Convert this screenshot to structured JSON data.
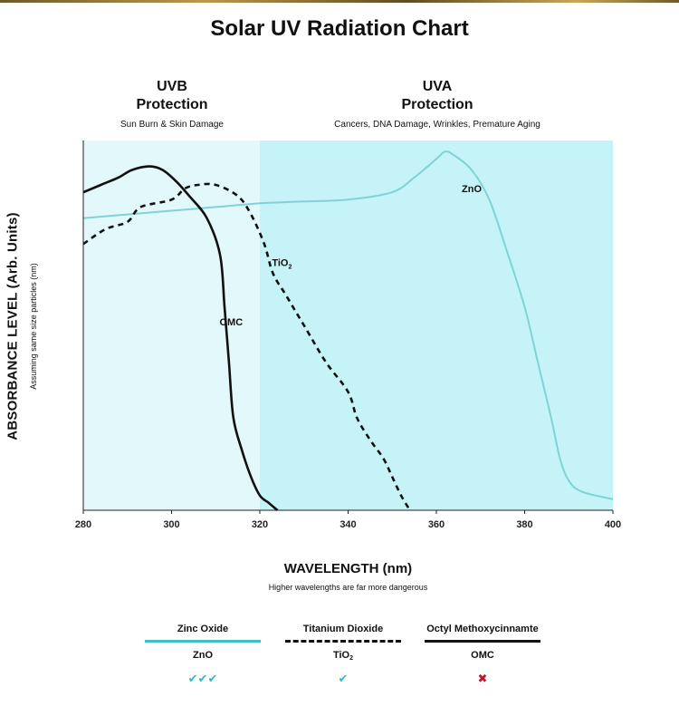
{
  "title": "Solar UV Radiation Chart",
  "regions": {
    "uvb": {
      "line1": "UVB",
      "line2": "Protection",
      "subtitle": "Sun Burn & Skin Damage",
      "color": "#e3f8fb",
      "range": [
        280,
        320
      ]
    },
    "uva": {
      "line1": "UVA",
      "line2": "Protection",
      "subtitle": "Cancers, DNA Damage, Wrinkles, Premature Aging",
      "color": "#c6f3f7",
      "range": [
        320,
        400
      ]
    }
  },
  "axes": {
    "ylabel": "ABSORBANCE LEVEL (Arb. Units)",
    "ylabel_sub": "Assuming same size particles (nm)",
    "xlabel": "WAVELENGTH (nm)",
    "xlabel_sub": "Higher wavelengths are far more dangerous",
    "xticks": [
      "280",
      "300",
      "320",
      "340",
      "360",
      "380",
      "400"
    ]
  },
  "chart_data": {
    "type": "line",
    "title": "Solar UV Radiation Chart",
    "xlabel": "WAVELENGTH (nm)",
    "ylabel": "ABSORBANCE LEVEL (Arb. Units)",
    "xlim": [
      280,
      400
    ],
    "ylim": [
      0,
      1
    ],
    "grid": false,
    "series": [
      {
        "name": "ZnO",
        "label": "ZnO",
        "color": "#7fd3d6",
        "style": "solid",
        "points": [
          [
            280,
            0.79
          ],
          [
            290,
            0.8
          ],
          [
            300,
            0.81
          ],
          [
            310,
            0.82
          ],
          [
            320,
            0.83
          ],
          [
            330,
            0.835
          ],
          [
            340,
            0.84
          ],
          [
            350,
            0.86
          ],
          [
            355,
            0.9
          ],
          [
            360,
            0.95
          ],
          [
            362,
            0.97
          ],
          [
            364,
            0.96
          ],
          [
            368,
            0.92
          ],
          [
            372,
            0.84
          ],
          [
            376,
            0.7
          ],
          [
            380,
            0.55
          ],
          [
            383,
            0.4
          ],
          [
            386,
            0.25
          ],
          [
            388,
            0.14
          ],
          [
            390,
            0.08
          ],
          [
            393,
            0.05
          ],
          [
            400,
            0.03
          ]
        ]
      },
      {
        "name": "TiO2",
        "label": "TiO",
        "label_sub": "2",
        "color": "#111111",
        "style": "dashed",
        "points": [
          [
            280,
            0.72
          ],
          [
            285,
            0.76
          ],
          [
            290,
            0.78
          ],
          [
            293,
            0.82
          ],
          [
            300,
            0.84
          ],
          [
            303,
            0.87
          ],
          [
            306,
            0.88
          ],
          [
            310,
            0.88
          ],
          [
            315,
            0.85
          ],
          [
            318,
            0.8
          ],
          [
            321,
            0.72
          ],
          [
            323,
            0.64
          ],
          [
            326,
            0.58
          ],
          [
            330,
            0.5
          ],
          [
            335,
            0.4
          ],
          [
            340,
            0.32
          ],
          [
            342,
            0.25
          ],
          [
            345,
            0.19
          ],
          [
            348,
            0.14
          ],
          [
            350,
            0.09
          ],
          [
            352,
            0.04
          ],
          [
            354,
            0.0
          ]
        ]
      },
      {
        "name": "OMC",
        "label": "OMC",
        "color": "#111111",
        "style": "solid",
        "points": [
          [
            280,
            0.86
          ],
          [
            284,
            0.88
          ],
          [
            288,
            0.9
          ],
          [
            291,
            0.92
          ],
          [
            295,
            0.93
          ],
          [
            298,
            0.92
          ],
          [
            301,
            0.89
          ],
          [
            304,
            0.85
          ],
          [
            308,
            0.79
          ],
          [
            311,
            0.69
          ],
          [
            312,
            0.55
          ],
          [
            313,
            0.4
          ],
          [
            314,
            0.25
          ],
          [
            316,
            0.16
          ],
          [
            318,
            0.09
          ],
          [
            320,
            0.04
          ],
          [
            322,
            0.02
          ],
          [
            324,
            0.0
          ]
        ]
      }
    ],
    "annotations": [
      {
        "text": "ZnO",
        "x": 368,
        "y": 0.86
      },
      {
        "text": "TiO",
        "sub": "2",
        "x": 325,
        "y": 0.66
      },
      {
        "text": "OMC",
        "x": 313.5,
        "y": 0.5
      }
    ]
  },
  "legend": [
    {
      "name": "Zinc Oxide",
      "abbr": "ZnO",
      "abbr_sub": "",
      "rating": "✔✔✔",
      "rating_color": "#36b8c4"
    },
    {
      "name": "Titanium Dioxide",
      "abbr": "TiO",
      "abbr_sub": "2",
      "rating": "✔",
      "rating_color": "#36b8c4"
    },
    {
      "name": "Octyl Methoxycinnamte",
      "abbr": "OMC",
      "abbr_sub": "",
      "rating": "✖",
      "rating_color": "#c0152b"
    }
  ]
}
